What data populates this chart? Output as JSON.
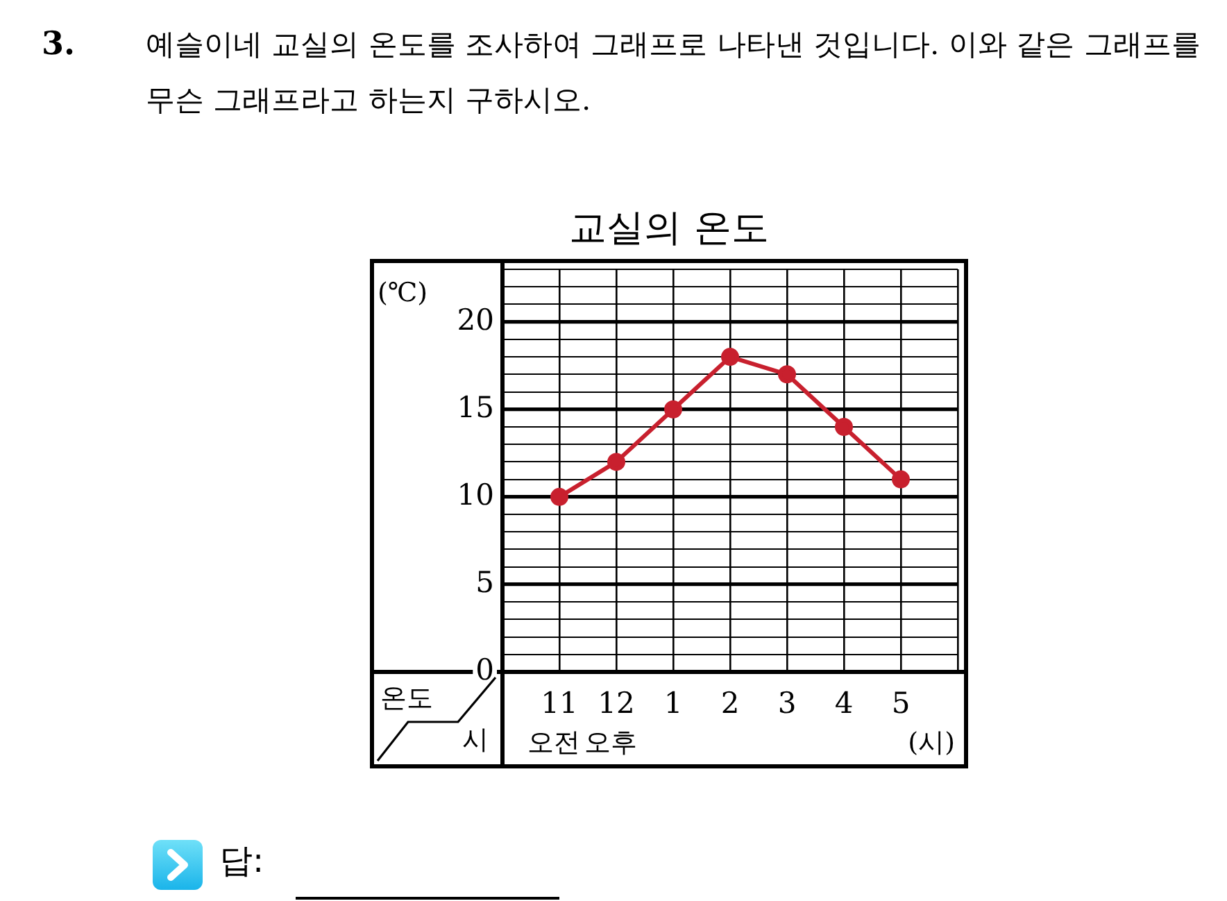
{
  "chart_data": {
    "type": "line",
    "title": "교실의 온도",
    "subtitle": "예슬이네 교실의 온도를 조사하여 그래프로 나타낸 것입니다. 이와 같은 그래프를 무슨 그래프라고 하는지 구하시오.",
    "xlabel": "(시)",
    "ylabel": "(℃)",
    "categories": [
      "11",
      "12",
      "1",
      "2",
      "3",
      "4",
      "5"
    ],
    "series": [
      {
        "color": "#c8202e",
        "values": [
          10,
          12,
          15,
          18,
          17,
          14,
          11
        ]
      }
    ],
    "ylim": [
      0,
      23
    ],
    "yticks": [
      0,
      {
        "value": 1,
        "label": null
      },
      {
        "value": 2,
        "label": null
      },
      {
        "value": 3,
        "label": null
      },
      {
        "value": 4,
        "label": null
      },
      5,
      {
        "value": 6,
        "label": null
      },
      {
        "value": 7,
        "label": null
      },
      {
        "value": 8,
        "label": null
      },
      {
        "value": 9,
        "label": null
      },
      10,
      {
        "value": 11,
        "label": null
      },
      {
        "value": 12,
        "label": null
      },
      {
        "value": 13,
        "label": null
      },
      {
        "value": 14,
        "label": null
      },
      15,
      {
        "value": 16,
        "label": null
      },
      {
        "value": 17,
        "label": null
      },
      {
        "value": 18,
        "label": null
      },
      {
        "value": 19,
        "label": null
      },
      20,
      {
        "value": 21,
        "label": null
      },
      {
        "value": 22,
        "label": null
      },
      {
        "value": 23,
        "label": null
      }
    ],
    "grid": true,
    "marker": "circle",
    "line_style": "solid",
    "annotations": [
      "3.",
      "오전",
      "오후",
      "온도",
      "시",
      "답:"
    ]
  }
}
